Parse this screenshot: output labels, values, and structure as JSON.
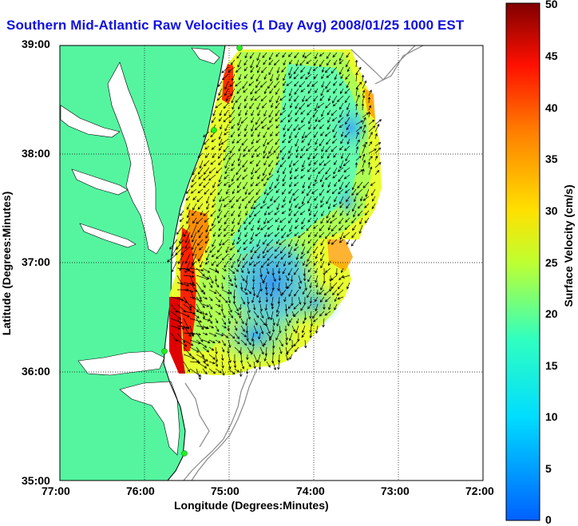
{
  "title": "Southern Mid-Atlantic Raw Velocities (1 Day Avg) 2008/01/25 1000 EST",
  "axes": {
    "xlabel": "Longitude (Degrees:Minutes)",
    "ylabel": "Latitude (Degrees:Minutes)",
    "xticks": [
      "77:00",
      "76:00",
      "75:00",
      "74:00",
      "73:00",
      "72:00"
    ],
    "yticks": [
      "39:00",
      "38:00",
      "37:00",
      "36:00",
      "35:00"
    ]
  },
  "colorbar": {
    "label": "Surface Velocity (cm/s)",
    "ticks": [
      "50",
      "45",
      "40",
      "35",
      "30",
      "25",
      "20",
      "15",
      "10",
      "5",
      "0"
    ],
    "min": 0,
    "max": 50
  },
  "colors": {
    "land": "#55f5a0",
    "coast": "#000000",
    "grid": "#000000",
    "bathymetry": "#909090",
    "station": "#22ee22",
    "title": "#1010e0"
  }
}
